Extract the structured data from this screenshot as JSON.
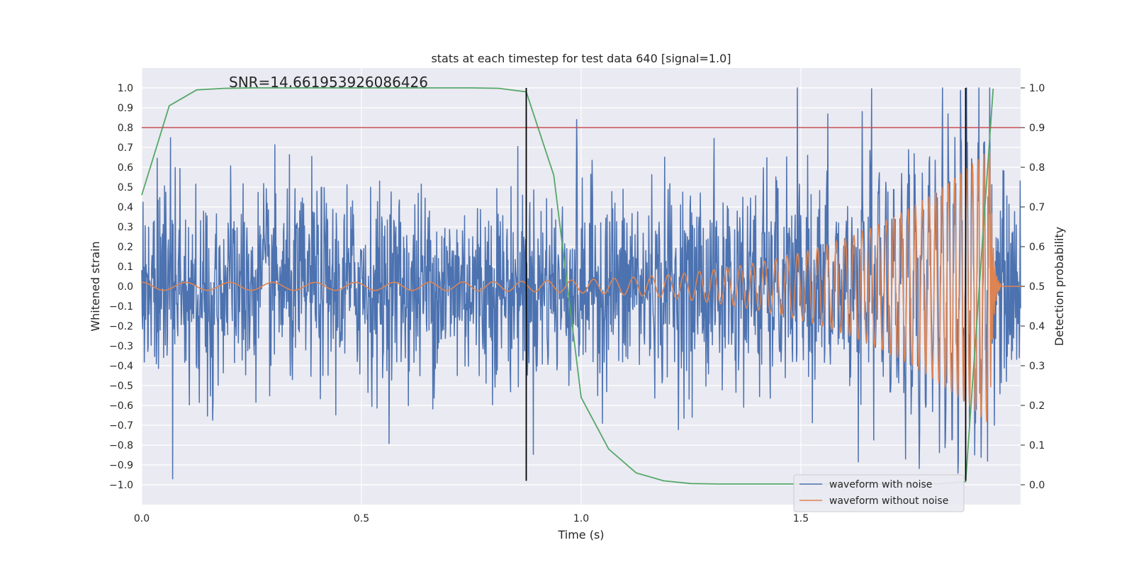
{
  "chart_data": {
    "type": "line",
    "title": "stats at each timestep for test data 640 [signal=1.0]",
    "xlabel": "Time (s)",
    "ylabel": "Whitened strain",
    "ylabel_right": "Detection probability",
    "xlim": [
      0.0,
      2.0
    ],
    "ylim": [
      -1.1,
      1.1
    ],
    "ylim_right": [
      -0.05,
      1.05
    ],
    "x_ticks": [
      0.0,
      0.5,
      1.0,
      1.5
    ],
    "x_tick_labels": [
      "0.0",
      "0.5",
      "1.0",
      "1.5"
    ],
    "y_ticks": [
      -1.0,
      -0.9,
      -0.8,
      -0.7,
      -0.6,
      -0.5,
      -0.4,
      -0.3,
      -0.2,
      -0.1,
      0.0,
      0.1,
      0.2,
      0.3,
      0.4,
      0.5,
      0.6,
      0.7,
      0.8,
      0.9,
      1.0
    ],
    "y_tick_labels": [
      "−1.0",
      "−0.9",
      "−0.8",
      "−0.7",
      "−0.6",
      "−0.5",
      "−0.4",
      "−0.3",
      "−0.2",
      "−0.1",
      "0.0",
      "0.1",
      "0.2",
      "0.3",
      "0.4",
      "0.5",
      "0.6",
      "0.7",
      "0.8",
      "0.9",
      "1.0"
    ],
    "y_ticks_right": [
      0.0,
      0.1,
      0.2,
      0.3,
      0.4,
      0.5,
      0.6,
      0.7,
      0.8,
      0.9,
      1.0
    ],
    "y_tick_labels_right": [
      "0.0",
      "0.1",
      "0.2",
      "0.3",
      "0.4",
      "0.5",
      "0.6",
      "0.7",
      "0.8",
      "0.9",
      "1.0"
    ],
    "grid": true,
    "legend_position": "lower-right",
    "annotation": "SNR=14.661953926086426",
    "threshold_right": 0.9,
    "vertical_lines_x": [
      0.875,
      1.875
    ],
    "vertical_lines_yrange": [
      -0.98,
      1.0
    ],
    "series": [
      {
        "name": "waveform with noise",
        "color": "#4c72b0",
        "axis": "left",
        "x_range": [
          0.0,
          2.0
        ],
        "n_samples": 2048,
        "noise_amplitude": 0.27,
        "notable_peaks": [
          {
            "x": 0.07,
            "y": -0.97
          },
          {
            "x": 0.99,
            "y": 0.84
          },
          {
            "x": 1.93,
            "y": 1.0
          },
          {
            "x": 1.94,
            "y": -0.7
          },
          {
            "x": 1.845,
            "y": -0.77
          }
        ]
      },
      {
        "name": "waveform without noise",
        "color": "#dd8452",
        "axis": "left",
        "type": "chirp",
        "amplitude_start": 0.02,
        "amplitude_peak": 0.7,
        "freq_start_hz": 10,
        "freq_end_hz": 80,
        "merger_x": 1.93,
        "ringdown_end_x": 1.955
      },
      {
        "name": "Detection probability",
        "color": "#55a868",
        "axis": "right",
        "x": [
          0.0,
          0.0625,
          0.125,
          0.1875,
          0.25,
          0.3125,
          0.375,
          0.4375,
          0.5,
          0.5625,
          0.625,
          0.6875,
          0.75,
          0.8125,
          0.875,
          0.9375,
          1.0,
          1.0625,
          1.125,
          1.1875,
          1.25,
          1.3125,
          1.375,
          1.4375,
          1.5,
          1.5625,
          1.625,
          1.6875,
          1.75,
          1.8125,
          1.875,
          1.9375
        ],
        "values": [
          0.73,
          0.955,
          0.995,
          0.999,
          1.0,
          1.0,
          1.0,
          1.0,
          1.0,
          1.0,
          1.0,
          1.0,
          1.0,
          0.999,
          0.99,
          0.78,
          0.22,
          0.09,
          0.03,
          0.01,
          0.003,
          0.002,
          0.002,
          0.002,
          0.002,
          0.002,
          0.002,
          0.002,
          0.002,
          0.002,
          0.008,
          0.998
        ]
      }
    ]
  }
}
